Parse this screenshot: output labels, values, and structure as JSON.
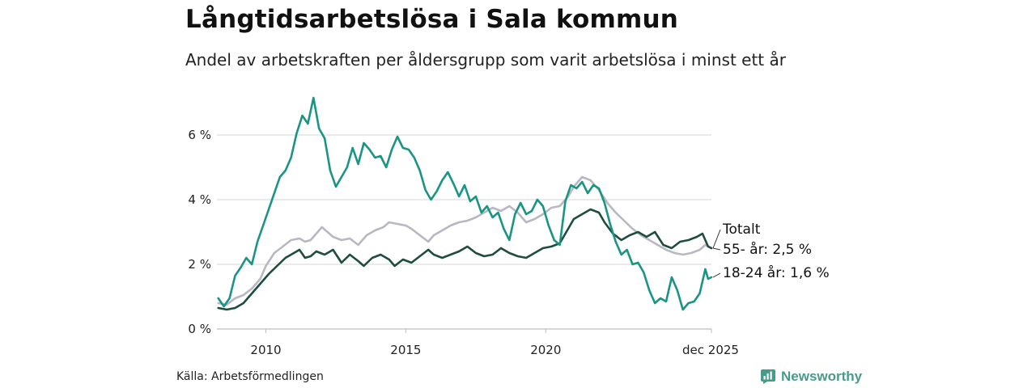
{
  "header": {
    "title": "Långtidsarbetslösa i Sala kommun",
    "subtitle": "Andel av arbetskraften per åldersgrupp som varit arbetslösa i minst ett år"
  },
  "footer": {
    "source": "Källa: Arbetsförmedlingen",
    "brand": "Newsworthy"
  },
  "chart_data": {
    "type": "line",
    "title": "Långtidsarbetslösa i Sala kommun",
    "subtitle": "Andel av arbetskraften per åldersgrupp som varit arbetslösa i minst ett år",
    "xlabel": "",
    "ylabel": "",
    "xlim": [
      2008.25,
      2025.92
    ],
    "ylim": [
      0,
      7.2
    ],
    "x_ticks": [
      {
        "value": 2010,
        "label": "2010"
      },
      {
        "value": 2015,
        "label": "2015"
      },
      {
        "value": 2020,
        "label": "2020"
      },
      {
        "value": 2025.92,
        "label": "dec 2025"
      }
    ],
    "y_ticks": [
      {
        "value": 0,
        "label": "0 %"
      },
      {
        "value": 2,
        "label": "2 %"
      },
      {
        "value": 4,
        "label": "4 %"
      },
      {
        "value": 6,
        "label": "6 %"
      }
    ],
    "grid": true,
    "series": [
      {
        "name": "55- år",
        "label": "55- år: 2,5 %",
        "color": "#b8b8c4",
        "points": [
          [
            2008.3,
            0.8
          ],
          [
            2008.6,
            0.75
          ],
          [
            2008.9,
            0.95
          ],
          [
            2009.2,
            1.05
          ],
          [
            2009.5,
            1.25
          ],
          [
            2009.8,
            1.55
          ],
          [
            2010.0,
            1.95
          ],
          [
            2010.3,
            2.35
          ],
          [
            2010.6,
            2.55
          ],
          [
            2010.9,
            2.75
          ],
          [
            2011.2,
            2.8
          ],
          [
            2011.4,
            2.7
          ],
          [
            2011.6,
            2.75
          ],
          [
            2011.8,
            2.95
          ],
          [
            2012.0,
            3.15
          ],
          [
            2012.2,
            3.0
          ],
          [
            2012.4,
            2.85
          ],
          [
            2012.7,
            2.75
          ],
          [
            2013.0,
            2.8
          ],
          [
            2013.3,
            2.6
          ],
          [
            2013.6,
            2.9
          ],
          [
            2013.9,
            3.05
          ],
          [
            2014.2,
            3.15
          ],
          [
            2014.4,
            3.3
          ],
          [
            2014.7,
            3.25
          ],
          [
            2015.0,
            3.2
          ],
          [
            2015.2,
            3.1
          ],
          [
            2015.5,
            2.9
          ],
          [
            2015.8,
            2.7
          ],
          [
            2016.0,
            2.9
          ],
          [
            2016.3,
            3.05
          ],
          [
            2016.6,
            3.2
          ],
          [
            2016.9,
            3.3
          ],
          [
            2017.2,
            3.35
          ],
          [
            2017.5,
            3.45
          ],
          [
            2017.8,
            3.6
          ],
          [
            2018.1,
            3.75
          ],
          [
            2018.4,
            3.65
          ],
          [
            2018.7,
            3.8
          ],
          [
            2019.0,
            3.6
          ],
          [
            2019.3,
            3.3
          ],
          [
            2019.6,
            3.4
          ],
          [
            2019.9,
            3.55
          ],
          [
            2020.2,
            3.75
          ],
          [
            2020.5,
            3.8
          ],
          [
            2020.8,
            4.1
          ],
          [
            2021.0,
            4.4
          ],
          [
            2021.3,
            4.7
          ],
          [
            2021.6,
            4.6
          ],
          [
            2021.9,
            4.3
          ],
          [
            2022.2,
            3.9
          ],
          [
            2022.5,
            3.6
          ],
          [
            2022.8,
            3.35
          ],
          [
            2023.1,
            3.1
          ],
          [
            2023.4,
            2.9
          ],
          [
            2023.7,
            2.75
          ],
          [
            2024.0,
            2.6
          ],
          [
            2024.3,
            2.45
          ],
          [
            2024.6,
            2.35
          ],
          [
            2024.9,
            2.3
          ],
          [
            2025.2,
            2.35
          ],
          [
            2025.5,
            2.45
          ],
          [
            2025.7,
            2.6
          ],
          [
            2025.92,
            2.5
          ]
        ]
      },
      {
        "name": "Totalt",
        "label": "Totalt",
        "color": "#1e4d40",
        "points": [
          [
            2008.3,
            0.65
          ],
          [
            2008.6,
            0.6
          ],
          [
            2008.9,
            0.65
          ],
          [
            2009.2,
            0.8
          ],
          [
            2009.5,
            1.1
          ],
          [
            2009.8,
            1.4
          ],
          [
            2010.1,
            1.7
          ],
          [
            2010.4,
            1.95
          ],
          [
            2010.7,
            2.2
          ],
          [
            2011.0,
            2.35
          ],
          [
            2011.2,
            2.45
          ],
          [
            2011.4,
            2.2
          ],
          [
            2011.6,
            2.25
          ],
          [
            2011.8,
            2.4
          ],
          [
            2012.1,
            2.3
          ],
          [
            2012.4,
            2.45
          ],
          [
            2012.7,
            2.05
          ],
          [
            2013.0,
            2.3
          ],
          [
            2013.3,
            2.1
          ],
          [
            2013.5,
            1.95
          ],
          [
            2013.8,
            2.2
          ],
          [
            2014.1,
            2.3
          ],
          [
            2014.4,
            2.15
          ],
          [
            2014.6,
            1.95
          ],
          [
            2014.9,
            2.15
          ],
          [
            2015.2,
            2.05
          ],
          [
            2015.5,
            2.25
          ],
          [
            2015.8,
            2.45
          ],
          [
            2016.0,
            2.3
          ],
          [
            2016.3,
            2.2
          ],
          [
            2016.6,
            2.3
          ],
          [
            2016.9,
            2.4
          ],
          [
            2017.2,
            2.55
          ],
          [
            2017.5,
            2.35
          ],
          [
            2017.8,
            2.25
          ],
          [
            2018.1,
            2.3
          ],
          [
            2018.4,
            2.5
          ],
          [
            2018.7,
            2.35
          ],
          [
            2019.0,
            2.25
          ],
          [
            2019.3,
            2.2
          ],
          [
            2019.6,
            2.35
          ],
          [
            2019.9,
            2.5
          ],
          [
            2020.2,
            2.55
          ],
          [
            2020.5,
            2.65
          ],
          [
            2020.8,
            3.1
          ],
          [
            2021.0,
            3.4
          ],
          [
            2021.3,
            3.55
          ],
          [
            2021.6,
            3.7
          ],
          [
            2021.9,
            3.6
          ],
          [
            2022.1,
            3.3
          ],
          [
            2022.4,
            2.95
          ],
          [
            2022.7,
            2.75
          ],
          [
            2023.0,
            2.9
          ],
          [
            2023.3,
            3.0
          ],
          [
            2023.6,
            2.85
          ],
          [
            2023.9,
            3.0
          ],
          [
            2024.2,
            2.6
          ],
          [
            2024.5,
            2.5
          ],
          [
            2024.8,
            2.7
          ],
          [
            2025.1,
            2.75
          ],
          [
            2025.4,
            2.85
          ],
          [
            2025.6,
            2.95
          ],
          [
            2025.8,
            2.55
          ],
          [
            2025.92,
            2.5
          ]
        ]
      },
      {
        "name": "18-24 år",
        "label": "18-24 år: 1,6 %",
        "color": "#1a9483",
        "points": [
          [
            2008.3,
            0.95
          ],
          [
            2008.5,
            0.7
          ],
          [
            2008.7,
            0.95
          ],
          [
            2008.9,
            1.65
          ],
          [
            2009.1,
            1.9
          ],
          [
            2009.3,
            2.2
          ],
          [
            2009.5,
            2.0
          ],
          [
            2009.7,
            2.7
          ],
          [
            2009.9,
            3.2
          ],
          [
            2010.1,
            3.7
          ],
          [
            2010.3,
            4.2
          ],
          [
            2010.5,
            4.7
          ],
          [
            2010.7,
            4.9
          ],
          [
            2010.9,
            5.3
          ],
          [
            2011.1,
            6.05
          ],
          [
            2011.3,
            6.6
          ],
          [
            2011.5,
            6.35
          ],
          [
            2011.7,
            7.15
          ],
          [
            2011.9,
            6.2
          ],
          [
            2012.1,
            5.9
          ],
          [
            2012.3,
            4.9
          ],
          [
            2012.5,
            4.4
          ],
          [
            2012.7,
            4.7
          ],
          [
            2012.9,
            5.0
          ],
          [
            2013.1,
            5.6
          ],
          [
            2013.3,
            5.1
          ],
          [
            2013.5,
            5.75
          ],
          [
            2013.7,
            5.55
          ],
          [
            2013.9,
            5.3
          ],
          [
            2014.1,
            5.35
          ],
          [
            2014.3,
            5.0
          ],
          [
            2014.5,
            5.55
          ],
          [
            2014.7,
            5.95
          ],
          [
            2014.9,
            5.6
          ],
          [
            2015.1,
            5.55
          ],
          [
            2015.3,
            5.3
          ],
          [
            2015.5,
            4.9
          ],
          [
            2015.7,
            4.3
          ],
          [
            2015.9,
            4.0
          ],
          [
            2016.1,
            4.25
          ],
          [
            2016.3,
            4.6
          ],
          [
            2016.5,
            4.85
          ],
          [
            2016.7,
            4.5
          ],
          [
            2016.9,
            4.1
          ],
          [
            2017.1,
            4.45
          ],
          [
            2017.3,
            3.95
          ],
          [
            2017.5,
            4.1
          ],
          [
            2017.7,
            3.6
          ],
          [
            2017.9,
            3.8
          ],
          [
            2018.1,
            3.45
          ],
          [
            2018.3,
            3.6
          ],
          [
            2018.5,
            3.1
          ],
          [
            2018.7,
            2.75
          ],
          [
            2018.9,
            3.55
          ],
          [
            2019.1,
            3.9
          ],
          [
            2019.3,
            3.55
          ],
          [
            2019.5,
            3.65
          ],
          [
            2019.7,
            4.0
          ],
          [
            2019.9,
            3.8
          ],
          [
            2020.1,
            3.2
          ],
          [
            2020.3,
            2.75
          ],
          [
            2020.5,
            2.6
          ],
          [
            2020.7,
            3.95
          ],
          [
            2020.9,
            4.45
          ],
          [
            2021.1,
            4.35
          ],
          [
            2021.3,
            4.55
          ],
          [
            2021.5,
            4.2
          ],
          [
            2021.7,
            4.45
          ],
          [
            2021.9,
            4.35
          ],
          [
            2022.1,
            3.9
          ],
          [
            2022.3,
            3.25
          ],
          [
            2022.5,
            2.7
          ],
          [
            2022.7,
            2.3
          ],
          [
            2022.9,
            2.45
          ],
          [
            2023.1,
            2.0
          ],
          [
            2023.3,
            2.05
          ],
          [
            2023.5,
            1.75
          ],
          [
            2023.7,
            1.2
          ],
          [
            2023.9,
            0.8
          ],
          [
            2024.1,
            0.95
          ],
          [
            2024.3,
            0.85
          ],
          [
            2024.5,
            1.6
          ],
          [
            2024.7,
            1.2
          ],
          [
            2024.9,
            0.6
          ],
          [
            2025.1,
            0.8
          ],
          [
            2025.3,
            0.85
          ],
          [
            2025.5,
            1.1
          ],
          [
            2025.7,
            1.85
          ],
          [
            2025.8,
            1.55
          ],
          [
            2025.92,
            1.6
          ]
        ]
      }
    ]
  }
}
